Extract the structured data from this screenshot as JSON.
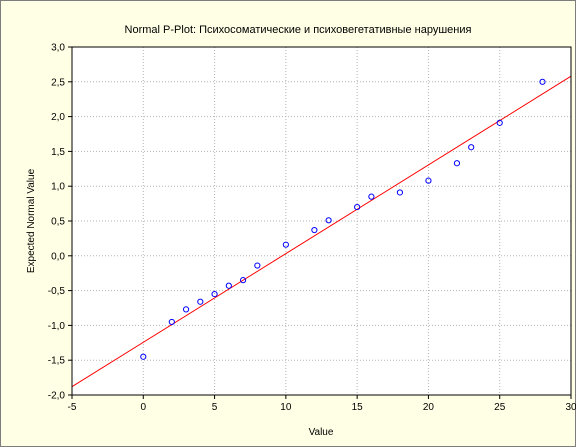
{
  "chart_data": {
    "type": "scatter",
    "title": "Normal P-Plot: Психосоматические и психовегетативные нарушения",
    "xlabel": "Value",
    "ylabel": "Expected Normal Value",
    "xlim": [
      -5,
      30
    ],
    "ylim": [
      -2.0,
      3.0
    ],
    "xticks": [
      -5,
      0,
      5,
      10,
      15,
      20,
      25,
      30
    ],
    "xtick_labels": [
      "-5",
      "0",
      "5",
      "10",
      "15",
      "20",
      "25",
      "30"
    ],
    "yticks": [
      -2.0,
      -1.5,
      -1.0,
      -0.5,
      0.0,
      0.5,
      1.0,
      1.5,
      2.0,
      2.5,
      3.0
    ],
    "ytick_labels": [
      "-2,0",
      "-1,5",
      "-1,0",
      "-0,5",
      "0,0",
      "0,5",
      "1,0",
      "1,5",
      "2,0",
      "2,5",
      "3,0"
    ],
    "grid": true,
    "points": {
      "x": [
        0,
        2,
        3,
        4,
        5,
        6,
        7,
        8,
        10,
        12,
        13,
        15,
        16,
        18,
        20,
        22,
        23,
        25,
        28
      ],
      "y": [
        -1.45,
        -0.95,
        -0.77,
        -0.66,
        -0.55,
        -0.43,
        -0.35,
        -0.14,
        0.16,
        0.37,
        0.51,
        0.7,
        0.85,
        0.91,
        1.08,
        1.33,
        1.56,
        1.91,
        2.5
      ],
      "marker": "open-circle",
      "color": "#0000ff"
    },
    "reference_line": {
      "x": [
        -5,
        30
      ],
      "y": [
        -1.88,
        2.58
      ],
      "color": "#ff0000"
    }
  }
}
